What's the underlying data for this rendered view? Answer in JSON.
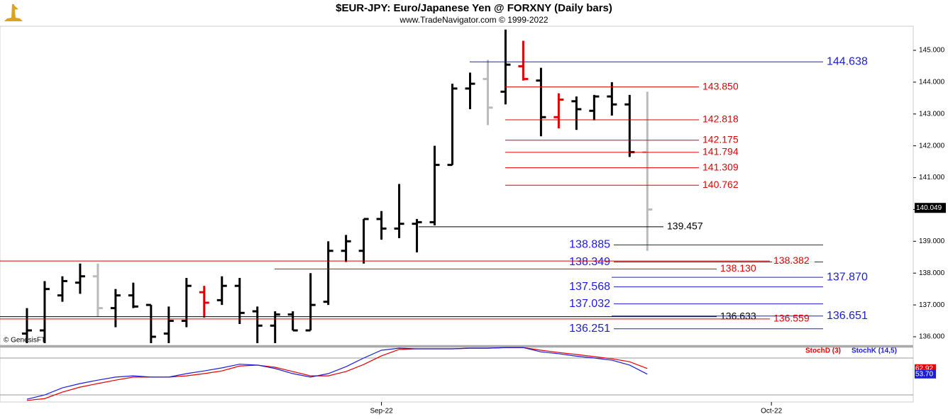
{
  "chart_data": {
    "type": "ohlc",
    "title": "$EUR-JPY:  Euro/Japanese Yen @ FORXNY  (Daily bars)",
    "subtitle": "www.TradeNavigator.com © 1999-2022",
    "credit": "© GenesisFT",
    "x": [
      0,
      1,
      2,
      3,
      4,
      5,
      6,
      7,
      8,
      9,
      10,
      11,
      12,
      13,
      14,
      15,
      16,
      17,
      18,
      19,
      20,
      21,
      22,
      23,
      24,
      25,
      26,
      27,
      28,
      29,
      30,
      31,
      32,
      33,
      34,
      35
    ],
    "open": [
      136.1,
      136.2,
      137.3,
      137.7,
      137.9,
      136.9,
      137.3,
      137.0,
      136.1,
      136.5,
      137.4,
      137.15,
      137.6,
      136.8,
      136.35,
      136.7,
      136.2,
      137.1,
      138.7,
      138.7,
      139.7,
      139.4,
      139.55,
      139.6,
      141.4,
      143.8,
      144.1,
      143.7,
      144.5,
      144.05,
      142.9,
      143.4,
      143.1,
      143.55,
      143.3,
      141.8
    ],
    "high": [
      136.9,
      137.75,
      137.9,
      138.3,
      138.3,
      137.5,
      137.7,
      137.0,
      136.95,
      137.85,
      137.6,
      137.9,
      137.85,
      136.95,
      136.8,
      136.8,
      138.0,
      139.0,
      139.2,
      139.7,
      139.95,
      140.8,
      139.7,
      142.0,
      143.95,
      144.3,
      144.7,
      145.65,
      145.3,
      144.45,
      143.65,
      143.55,
      143.6,
      144.0,
      143.6,
      143.7
    ],
    "low": [
      135.8,
      135.8,
      137.1,
      137.35,
      136.63,
      136.3,
      136.9,
      135.8,
      135.8,
      136.3,
      136.6,
      137.0,
      136.4,
      135.8,
      135.8,
      136.2,
      136.2,
      137.0,
      138.35,
      138.3,
      139.05,
      139.1,
      138.65,
      139.5,
      141.4,
      143.15,
      142.65,
      143.3,
      144.05,
      142.3,
      142.55,
      142.5,
      142.8,
      142.95,
      141.65,
      138.7
    ],
    "close": [
      136.2,
      137.5,
      137.75,
      137.9,
      136.9,
      137.3,
      136.95,
      136.0,
      136.5,
      137.6,
      137.07,
      137.6,
      136.75,
      136.35,
      136.7,
      136.2,
      137.0,
      138.7,
      139.0,
      139.7,
      139.4,
      139.55,
      139.6,
      141.4,
      143.8,
      143.95,
      143.2,
      144.55,
      144.1,
      142.9,
      143.45,
      143.15,
      143.55,
      143.3,
      141.8,
      140.0
    ],
    "colors": [
      "#000",
      "#000",
      "#000",
      "#000",
      "#bbb",
      "#000",
      "#000",
      "#000",
      "#000",
      "#000",
      "#e00000",
      "#000",
      "#000",
      "#000",
      "#000",
      "#000",
      "#000",
      "#000",
      "#000",
      "#000",
      "#000",
      "#000",
      "#000",
      "#000",
      "#000",
      "#000",
      "#bbb",
      "#000",
      "#e00000",
      "#000",
      "#e00000",
      "#000",
      "#000",
      "#000",
      "#000",
      "#bbb"
    ],
    "xlim": [
      -1.52,
      50
    ],
    "xticks": [
      {
        "value": 20,
        "label": "Sep-22"
      },
      {
        "value": 42,
        "label": "Oct-22"
      }
    ],
    "ylim": [
      135.733,
      145.757
    ],
    "yticks": [
      {
        "value": 136,
        "label": "136.000"
      },
      {
        "value": 137,
        "label": "137.000"
      },
      {
        "value": 138,
        "label": "138.000"
      },
      {
        "value": 139,
        "label": "139.000"
      },
      {
        "value": 140,
        "label": "140.000"
      },
      {
        "value": 141,
        "label": "141.000"
      },
      {
        "value": 142,
        "label": "142.000"
      },
      {
        "value": 143,
        "label": "143.000"
      },
      {
        "value": 144,
        "label": "144.000"
      },
      {
        "value": 145,
        "label": "145.000"
      }
    ],
    "last_price": 140.049,
    "levels": [
      {
        "value": 144.638,
        "label": "144.638",
        "color": "#1c1cdc"
      },
      {
        "value": 143.85,
        "label": "143.850",
        "color": "#e00000"
      },
      {
        "value": 142.818,
        "label": "142.818",
        "color": "#e00000"
      },
      {
        "value": 142.175,
        "label": "142.175",
        "color": "#e00000"
      },
      {
        "value": 141.794,
        "label": "141.794",
        "color": "#e00000"
      },
      {
        "value": 141.309,
        "label": "141.309",
        "color": "#e00000"
      },
      {
        "value": 140.762,
        "label": "140.762",
        "color": "#e00000"
      },
      {
        "value": 139.457,
        "label": "139.457",
        "color": "#000"
      },
      {
        "value": 138.885,
        "label": "138.885",
        "color": "#1c1cdc"
      },
      {
        "value": 138.349,
        "label": "138.349",
        "color": "#1c1cdc"
      },
      {
        "value": 138.382,
        "label": "138.382",
        "color": "#e00000"
      },
      {
        "value": 138.13,
        "label": "138.130",
        "color": "#e00000"
      },
      {
        "value": 137.87,
        "label": "137.870",
        "color": "#1c1cdc"
      },
      {
        "value": 137.568,
        "label": "137.568",
        "color": "#1c1cdc"
      },
      {
        "value": 137.032,
        "label": "137.032",
        "color": "#1c1cdc"
      },
      {
        "value": 136.633,
        "label": "136.633",
        "color": "#000"
      },
      {
        "value": 136.559,
        "label": "136.559",
        "color": "#e00000"
      },
      {
        "value": 136.651,
        "label": "136.651",
        "color": "#1c1cdc"
      },
      {
        "value": 136.251,
        "label": "136.251",
        "color": "#1c1cdc"
      }
    ],
    "stochastic": {
      "type": "line",
      "ylim": [
        10.8,
        97.3
      ],
      "yticks": [
        20,
        80
      ],
      "series": [
        {
          "name": "StochD (3)",
          "color": "#e00000",
          "values": [
            11,
            14,
            24.6,
            32.7,
            38.5,
            44,
            49,
            49,
            49,
            51,
            54.6,
            59,
            67,
            68.5,
            65,
            58,
            51,
            51,
            58,
            69.6,
            83.5,
            94,
            95,
            95,
            95,
            96,
            96,
            97,
            97,
            92.7,
            89,
            85.8,
            82.3,
            78.8,
            74,
            62.92
          ],
          "value_labels": [
            null,
            null,
            null,
            null,
            null,
            null,
            null,
            null,
            null,
            null,
            null,
            null,
            null,
            null,
            null,
            null,
            null,
            null,
            null,
            null,
            null,
            null,
            null,
            null,
            null,
            null,
            null,
            null,
            null,
            null,
            null,
            null,
            null,
            null,
            null,
            "62.92"
          ]
        },
        {
          "name": "StochK (14,5)",
          "color": "#1c1cdc",
          "values": [
            13,
            20,
            31.5,
            38.5,
            44,
            49,
            51,
            49,
            49,
            54.6,
            59,
            64,
            70,
            68.5,
            63,
            54.6,
            49,
            54.6,
            66,
            80,
            92.7,
            96,
            95,
            95,
            95,
            96,
            96,
            97,
            97,
            90,
            87,
            83,
            80,
            76.5,
            68.5,
            53.7
          ],
          "value_labels": [
            null,
            null,
            null,
            null,
            null,
            null,
            null,
            null,
            null,
            null,
            null,
            null,
            null,
            null,
            null,
            null,
            null,
            null,
            null,
            null,
            null,
            null,
            null,
            null,
            null,
            null,
            null,
            null,
            null,
            null,
            null,
            null,
            null,
            null,
            null,
            "53.70"
          ]
        }
      ]
    }
  }
}
